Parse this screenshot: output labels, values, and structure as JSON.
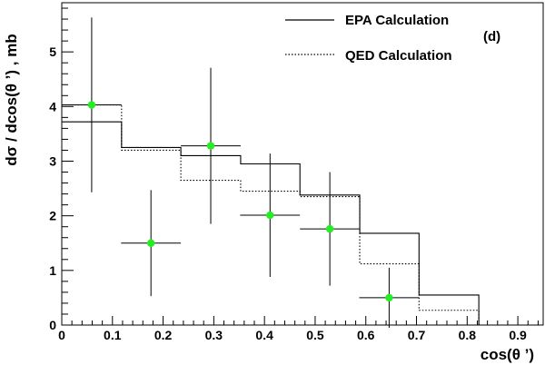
{
  "chart_data": {
    "type": "line",
    "panel_label": "(d)",
    "xlabel": "cos(θ ’)",
    "ylabel": "dσ / dcos(θ ’) , mb",
    "xlim": [
      0,
      0.95
    ],
    "ylim": [
      0,
      5.9
    ],
    "x_ticks": [
      "0",
      "0.1",
      "0.2",
      "0.3",
      "0.4",
      "0.5",
      "0.6",
      "0.7",
      "0.8",
      "0.9"
    ],
    "y_ticks": [
      "0",
      "1",
      "2",
      "3",
      "4",
      "5"
    ],
    "legend": {
      "placement": "top-right",
      "entries": [
        "EPA Calculation",
        "QED Calculation"
      ]
    },
    "bin_edges": [
      0,
      0.118,
      0.235,
      0.353,
      0.47,
      0.588,
      0.705,
      0.823
    ],
    "series": [
      {
        "name": "EPA Calculation",
        "style": "solid",
        "values": [
          3.72,
          3.25,
          3.1,
          2.95,
          2.38,
          1.68,
          0.55
        ]
      },
      {
        "name": "QED Calculation",
        "style": "dotted",
        "values": [
          4.03,
          3.2,
          2.65,
          2.45,
          2.35,
          1.12,
          0.27
        ]
      }
    ],
    "data_points": {
      "color": "#22ee22",
      "x": [
        0.059,
        0.176,
        0.294,
        0.411,
        0.529,
        0.646
      ],
      "y": [
        4.03,
        1.5,
        3.28,
        2.01,
        1.76,
        0.5
      ],
      "x_err": [
        0.059,
        0.059,
        0.059,
        0.059,
        0.059,
        0.059
      ],
      "y_err": [
        1.6,
        0.97,
        1.43,
        1.13,
        1.04,
        0.55
      ]
    },
    "grid": false
  }
}
